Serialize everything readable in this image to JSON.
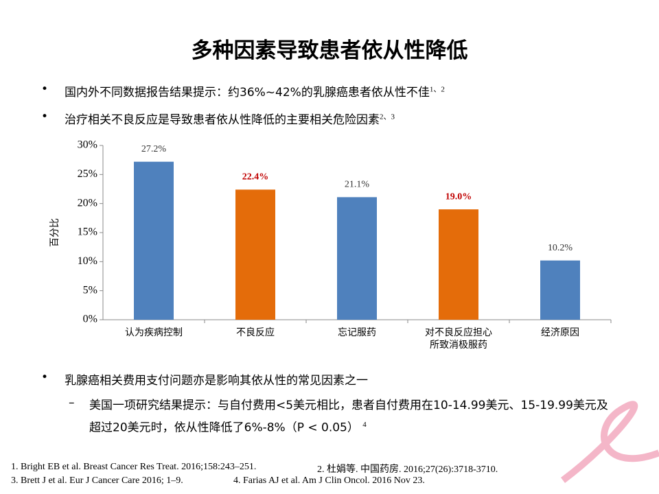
{
  "title": "多种因素导致患者依从性降低",
  "bullets": [
    {
      "text": "国内外不同数据报告结果提示：约36%~42%的乳腺癌患者依从性不佳",
      "sup": "1、2"
    },
    {
      "text": "治疗相关不良反应是导致患者依从性降低的主要相关危险因素",
      "sup": "2、3"
    },
    {
      "text": "乳腺癌相关费用支付问题亦是影响其依从性的常见因素之一"
    }
  ],
  "sub_bullet": {
    "text": "美国一项研究结果提示：与自付费用<5美元相比，患者自付费用在10-14.99美元、15-19.99美元及超过20美元时，依从性降低了6%-8%（P < 0.05）",
    "sup": "4"
  },
  "chart_data": {
    "type": "bar",
    "y_label": "百分比",
    "categories": [
      "认为疾病控制",
      "不良反应",
      "忘记服药",
      "对不良反应担心\n所致消极服药",
      "经济原因"
    ],
    "values": [
      27.2,
      22.4,
      21.1,
      19.0,
      10.2
    ],
    "value_labels": [
      "27.2%",
      "22.4%",
      "21.1%",
      "19.0%",
      "10.2%"
    ],
    "colors": [
      "#4f81bd",
      "#e46c0a",
      "#4f81bd",
      "#e46c0a",
      "#4f81bd"
    ],
    "value_label_colors": [
      "#333333",
      "#c00000",
      "#333333",
      "#c00000",
      "#333333"
    ],
    "ylim": [
      0,
      30
    ],
    "yticks": [
      {
        "value": 0,
        "label": "0%"
      },
      {
        "value": 5,
        "label": "5%"
      },
      {
        "value": 10,
        "label": "10%"
      },
      {
        "value": 15,
        "label": "15%"
      },
      {
        "value": 20,
        "label": "20%"
      },
      {
        "value": 25,
        "label": "25%"
      },
      {
        "value": 30,
        "label": "30%"
      }
    ]
  },
  "references": [
    "1. Bright EB et al. Breast Cancer Res Treat. 2016;158:243–251.",
    "2. 杜娟等. 中国药房. 2016;27(26):3718-3710.",
    "3. Brett J et al. Eur J Cancer Care 2016; 1–9.",
    "4. Farias AJ et al. Am J Clin Oncol. 2016 Nov 23."
  ]
}
